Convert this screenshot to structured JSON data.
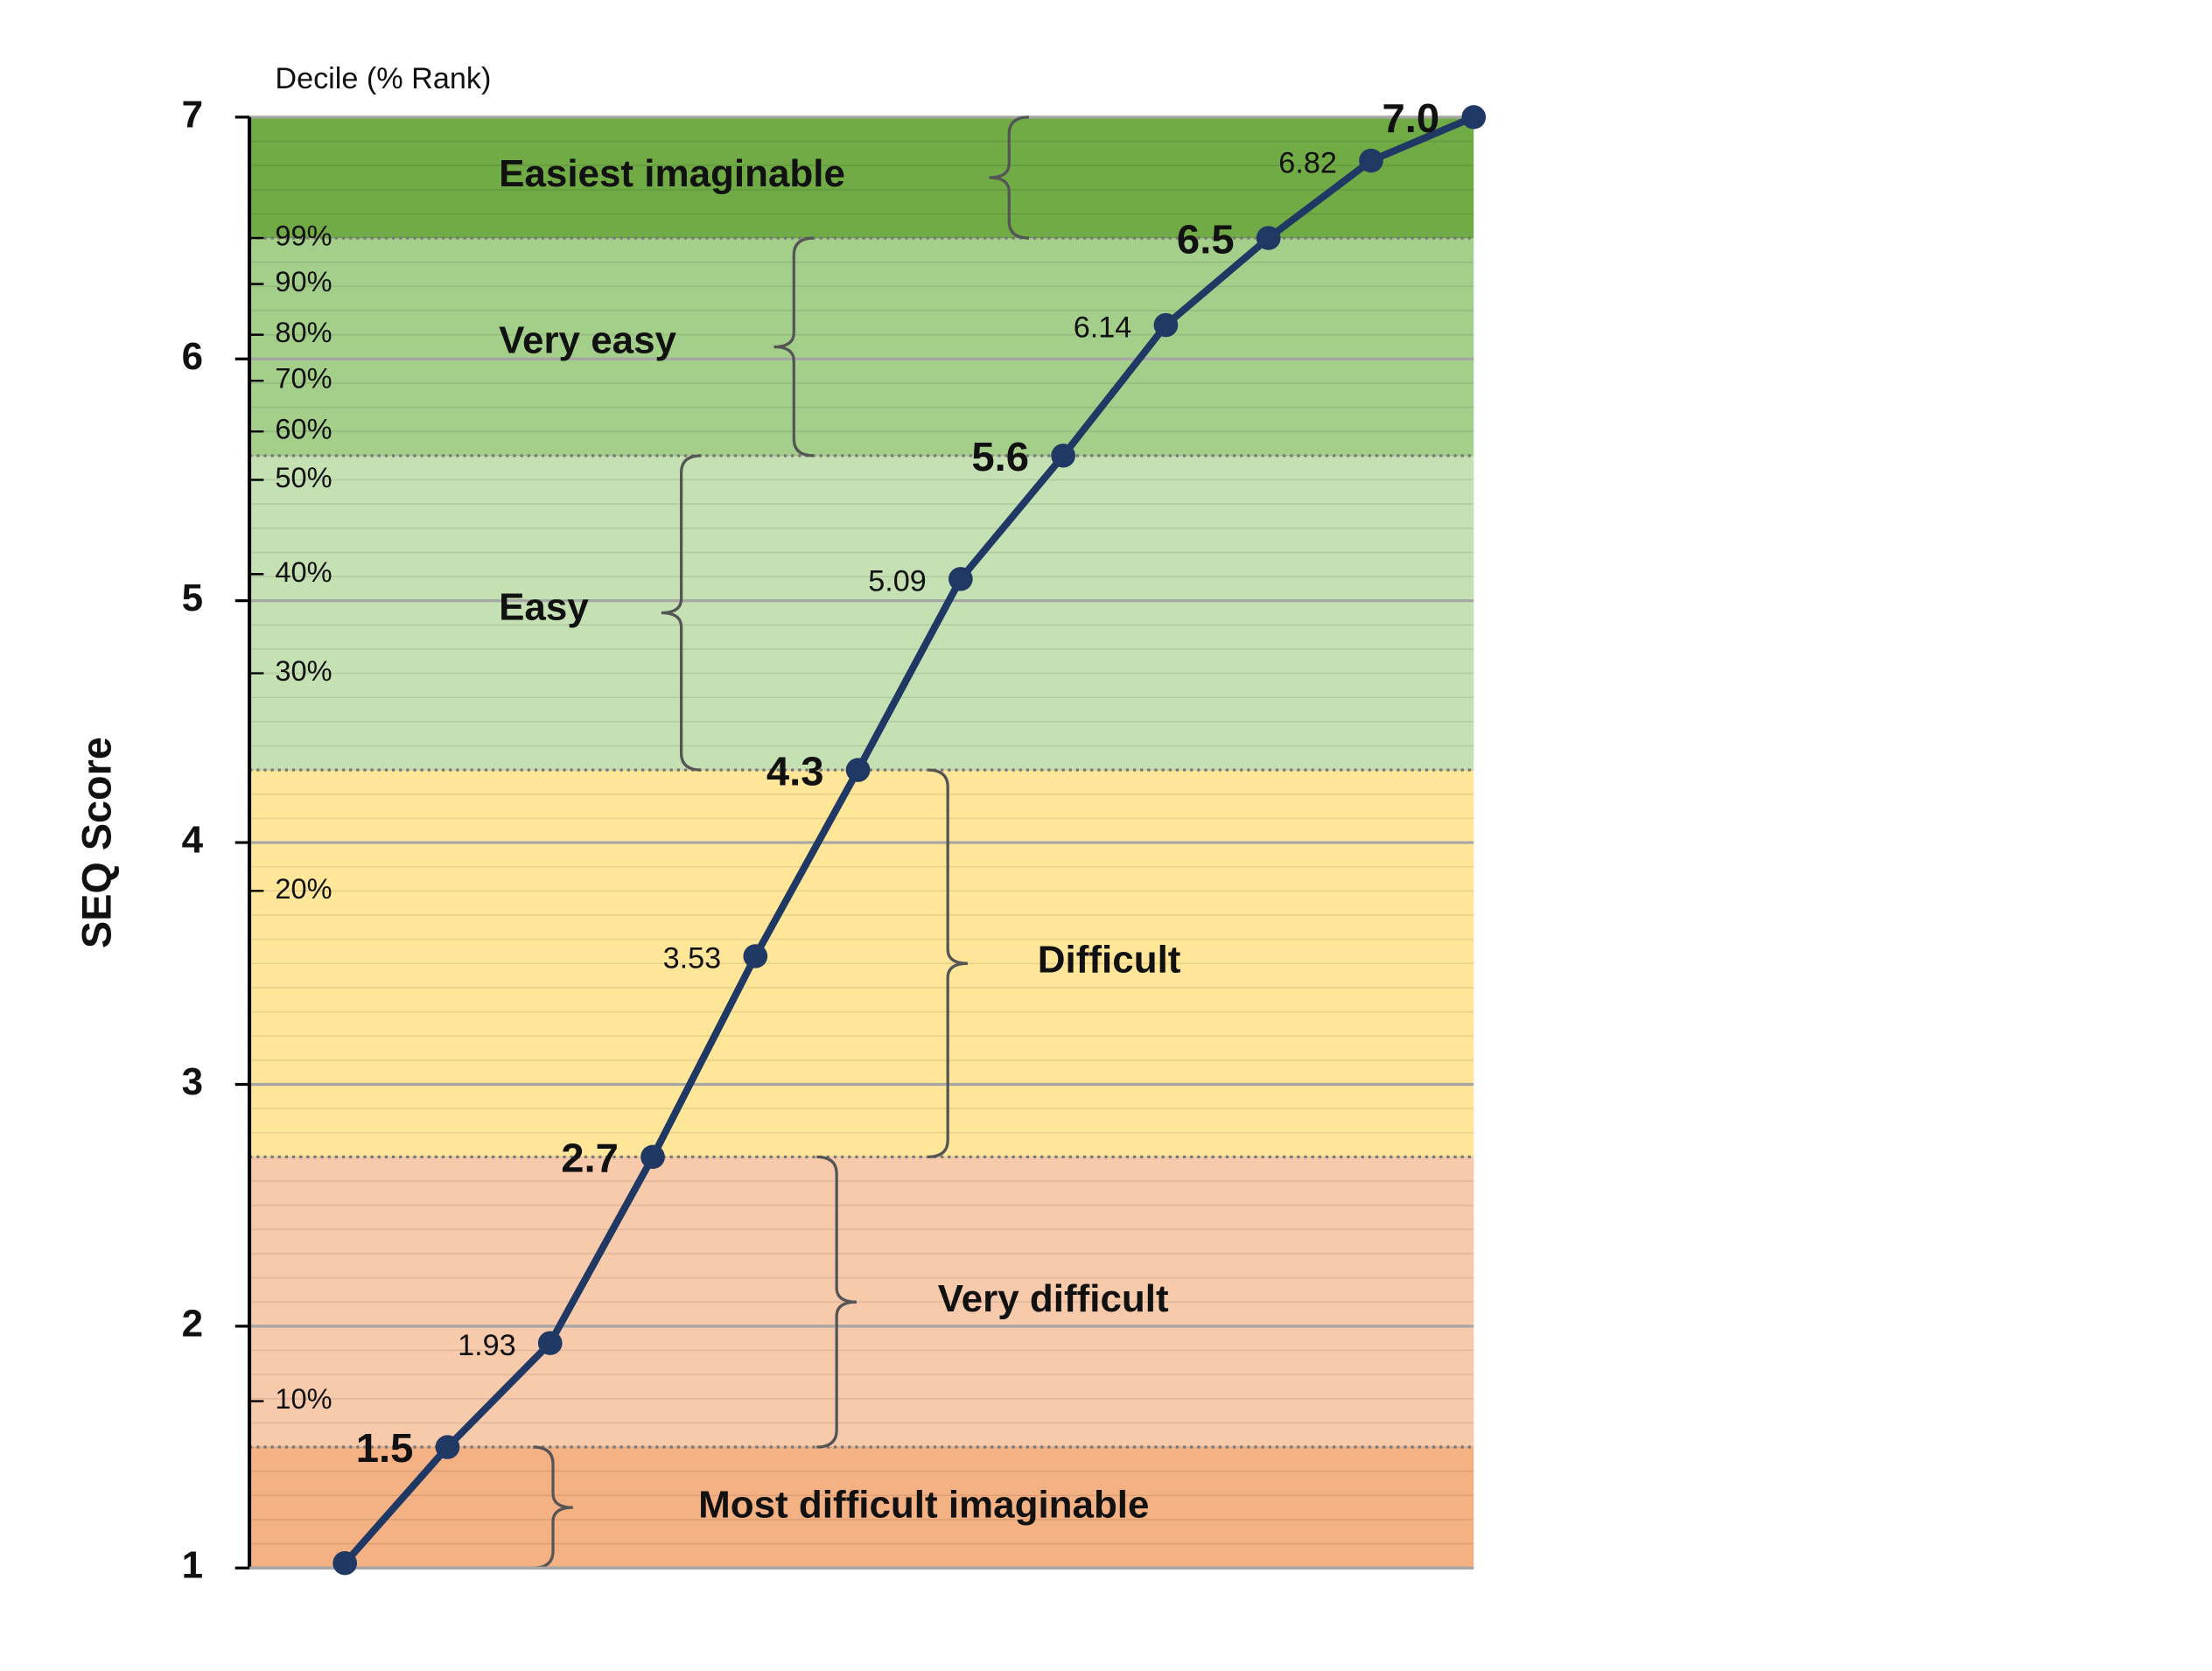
{
  "chart_data": {
    "type": "line",
    "y_axis_label": "SEQ Score",
    "decile_axis_label": "Decile (% Rank)",
    "categories": [
      null,
      null,
      null,
      null,
      null,
      null,
      null,
      null,
      null,
      null,
      null,
      null
    ],
    "series": [
      {
        "name": null,
        "color": "#1f3864",
        "values": [
          1.02,
          1.5,
          1.93,
          2.7,
          3.53,
          4.3,
          5.09,
          5.6,
          6.14,
          6.5,
          6.82,
          7.0
        ],
        "value_labels": [
          null,
          "1.5",
          "1.93",
          "2.7",
          "3.53",
          "4.3",
          "5.09",
          "5.6",
          "6.14",
          "6.5",
          "6.82",
          "7.0"
        ]
      }
    ],
    "ylim": [
      1,
      7
    ],
    "yticks": [
      1,
      2,
      3,
      4,
      5,
      6,
      7
    ],
    "grid": true,
    "decile_ticks": [
      {
        "value": 6.5,
        "label": "99%"
      },
      {
        "value": 6.31,
        "label": "90%"
      },
      {
        "value": 6.1,
        "label": "80%"
      },
      {
        "value": 5.91,
        "label": "70%"
      },
      {
        "value": 5.7,
        "label": "60%"
      },
      {
        "value": 5.5,
        "label": "50%"
      },
      {
        "value": 5.11,
        "label": "40%"
      },
      {
        "value": 4.7,
        "label": "30%"
      },
      {
        "value": 3.8,
        "label": "20%"
      },
      {
        "value": 1.69,
        "label": "10%"
      }
    ],
    "bands": [
      {
        "label": "Most difficult imaginable",
        "from": 1,
        "to": 1.5,
        "color": "#f4b183"
      },
      {
        "label": "Very difficult",
        "from": 1.5,
        "to": 2.7,
        "color": "#f7caac"
      },
      {
        "label": "Difficult",
        "from": 2.7,
        "to": 4.3,
        "color": "#ffe699"
      },
      {
        "label": "Easy",
        "from": 4.3,
        "to": 5.6,
        "color": "#c5e0b3"
      },
      {
        "label": "Very easy",
        "from": 5.6,
        "to": 6.5,
        "color": "#a4cf8a"
      },
      {
        "label": "Easiest imaginable",
        "from": 6.5,
        "to": 7,
        "color": "#70ab46"
      }
    ]
  }
}
